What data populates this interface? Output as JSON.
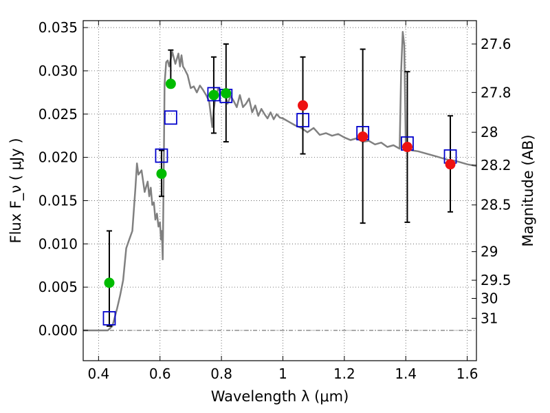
{
  "chart_data": {
    "type": "scatter",
    "xlabel": "Wavelength  λ (μm)",
    "ylabel": "Flux  F_ν  ( μJy )",
    "y2label": "Magnitude (AB)",
    "xlim": [
      0.35,
      1.63
    ],
    "ylim": [
      -0.0035,
      0.0358
    ],
    "grid": true,
    "x_ticks": [
      0.4,
      0.6,
      0.8,
      1.0,
      1.2,
      1.4,
      1.6
    ],
    "x_tick_labels": [
      "0.4",
      "0.6",
      "0.8",
      "1",
      "1.2",
      "1.4",
      "1.6"
    ],
    "y_ticks": [
      0.0,
      0.005,
      0.01,
      0.015,
      0.02,
      0.025,
      0.03,
      0.035
    ],
    "y_tick_labels": [
      "0.000",
      "0.005",
      "0.010",
      "0.015",
      "0.020",
      "0.025",
      "0.030",
      "0.035"
    ],
    "y2_ticks": [
      {
        "label": "27.6",
        "flux": 0.0331
      },
      {
        "label": "27.8",
        "flux": 0.0275
      },
      {
        "label": "28",
        "flux": 0.0229
      },
      {
        "label": "28.2",
        "flux": 0.0191
      },
      {
        "label": "28.5",
        "flux": 0.0145
      },
      {
        "label": "29",
        "flux": 0.0091
      },
      {
        "label": "29.5",
        "flux": 0.0058
      },
      {
        "label": "30",
        "flux": 0.0037
      },
      {
        "label": "31",
        "flux": 0.0014
      }
    ],
    "series": [
      {
        "kind": "model-spectrum",
        "color": "#808080",
        "x": [
          0.35,
          0.43,
          0.445,
          0.46,
          0.47,
          0.48,
          0.49,
          0.5,
          0.51,
          0.52,
          0.525,
          0.53,
          0.54,
          0.55,
          0.56,
          0.565,
          0.57,
          0.575,
          0.58,
          0.585,
          0.59,
          0.595,
          0.6,
          0.603,
          0.606,
          0.609,
          0.612,
          0.615,
          0.62,
          0.625,
          0.63,
          0.64,
          0.65,
          0.66,
          0.665,
          0.67,
          0.675,
          0.68,
          0.69,
          0.7,
          0.71,
          0.72,
          0.73,
          0.74,
          0.75,
          0.76,
          0.77,
          0.775,
          0.78,
          0.79,
          0.8,
          0.81,
          0.82,
          0.83,
          0.84,
          0.85,
          0.86,
          0.87,
          0.88,
          0.89,
          0.9,
          0.91,
          0.92,
          0.93,
          0.94,
          0.95,
          0.96,
          0.97,
          0.98,
          0.99,
          1.0,
          1.02,
          1.04,
          1.06,
          1.08,
          1.1,
          1.12,
          1.14,
          1.16,
          1.18,
          1.2,
          1.22,
          1.24,
          1.26,
          1.28,
          1.3,
          1.32,
          1.34,
          1.36,
          1.38,
          1.385,
          1.39,
          1.395,
          1.4,
          1.41,
          1.42,
          1.44,
          1.46,
          1.48,
          1.5,
          1.52,
          1.54,
          1.56,
          1.58,
          1.6,
          1.63
        ],
        "y": [
          0.0,
          0.0,
          0.0005,
          0.0025,
          0.004,
          0.0058,
          0.0095,
          0.0105,
          0.0115,
          0.0165,
          0.0193,
          0.018,
          0.0185,
          0.016,
          0.0172,
          0.0155,
          0.0165,
          0.0145,
          0.0148,
          0.0128,
          0.0135,
          0.012,
          0.0125,
          0.0105,
          0.0115,
          0.0082,
          0.018,
          0.0285,
          0.031,
          0.0312,
          0.0305,
          0.0322,
          0.0308,
          0.032,
          0.0305,
          0.0318,
          0.0305,
          0.0302,
          0.0295,
          0.028,
          0.0282,
          0.0275,
          0.0283,
          0.0278,
          0.0272,
          0.0265,
          0.0235,
          0.0255,
          0.0268,
          0.028,
          0.0274,
          0.0276,
          0.0262,
          0.0271,
          0.0265,
          0.0258,
          0.0272,
          0.0258,
          0.0262,
          0.0268,
          0.0252,
          0.026,
          0.0248,
          0.0256,
          0.025,
          0.0245,
          0.0252,
          0.0244,
          0.025,
          0.0246,
          0.0245,
          0.0241,
          0.0237,
          0.0234,
          0.0229,
          0.0234,
          0.0226,
          0.0228,
          0.0225,
          0.0227,
          0.0223,
          0.022,
          0.0222,
          0.0218,
          0.0219,
          0.0215,
          0.0217,
          0.0212,
          0.0214,
          0.021,
          0.03,
          0.0345,
          0.033,
          0.0215,
          0.021,
          0.0208,
          0.0207,
          0.0205,
          0.0203,
          0.0201,
          0.0199,
          0.0197,
          0.0196,
          0.0194,
          0.0192,
          0.019
        ]
      },
      {
        "kind": "model-photometry",
        "marker": "open-square",
        "color": "#0000cc",
        "x": [
          0.435,
          0.605,
          0.635,
          0.775,
          0.815,
          1.065,
          1.26,
          1.405,
          1.545
        ],
        "y": [
          0.0014,
          0.0202,
          0.0246,
          0.0273,
          0.0271,
          0.0243,
          0.0228,
          0.0216,
          0.0201
        ]
      },
      {
        "kind": "observed-optical",
        "marker": "filled-circle",
        "color": "#00bb00",
        "x": [
          0.435,
          0.605,
          0.635,
          0.775,
          0.815
        ],
        "y": [
          0.0055,
          0.0181,
          0.0285,
          0.0272,
          0.0274
        ],
        "yerr_low": [
          0.0005,
          0.0155,
          0.0285,
          0.0228,
          0.0218
        ],
        "yerr_high": [
          0.0115,
          0.0208,
          0.0324,
          0.0316,
          0.0331
        ]
      },
      {
        "kind": "observed-near-ir",
        "marker": "filled-circle",
        "color": "#ee1111",
        "x": [
          1.065,
          1.26,
          1.405,
          1.545
        ],
        "y": [
          0.026,
          0.0224,
          0.0212,
          0.0192
        ],
        "yerr_low": [
          0.0204,
          0.0124,
          0.0125,
          0.0137
        ],
        "yerr_high": [
          0.0316,
          0.0325,
          0.0299,
          0.0248
        ]
      }
    ]
  }
}
